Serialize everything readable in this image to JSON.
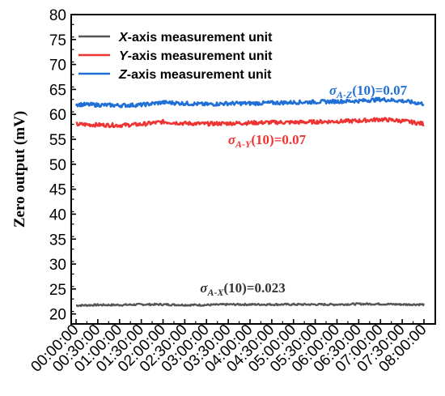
{
  "chart_data": {
    "type": "line",
    "ylabel": "Zero output (mV)",
    "xlabel": "",
    "ylim": [
      18,
      80
    ],
    "y_ticks": [
      20,
      25,
      30,
      35,
      40,
      45,
      50,
      55,
      60,
      65,
      70,
      75,
      80
    ],
    "x_ticks": [
      "00:00:00",
      "00:30:00",
      "01:00:00",
      "01:30:00",
      "02:00:00",
      "02:30:00",
      "03:00:00",
      "03:30:00",
      "04:00:00",
      "04:30:00",
      "05:00:00",
      "05:30:00",
      "06:00:00",
      "06:30:00",
      "07:00:00",
      "07:30:00",
      "08:00:00"
    ],
    "legend_position": "top-left",
    "series": [
      {
        "name_parts": [
          {
            "text": "X",
            "italic": true
          },
          {
            "text": "-axis measurement unit",
            "italic": false
          }
        ],
        "name": "X-axis measurement unit",
        "color": "#555555",
        "x": [
          "00:00:00",
          "00:30:00",
          "01:00:00",
          "01:30:00",
          "02:00:00",
          "02:30:00",
          "03:00:00",
          "03:30:00",
          "04:00:00",
          "04:30:00",
          "05:00:00",
          "05:30:00",
          "06:00:00",
          "06:30:00",
          "07:00:00",
          "07:30:00",
          "08:00:00"
        ],
        "values": [
          21.7,
          21.8,
          21.8,
          21.9,
          21.9,
          21.8,
          21.8,
          21.9,
          21.9,
          21.9,
          21.9,
          21.9,
          21.9,
          22.0,
          22.0,
          21.9,
          21.9
        ]
      },
      {
        "name_parts": [
          {
            "text": "Y",
            "italic": true
          },
          {
            "text": "-axis measurement unit",
            "italic": false
          }
        ],
        "name": "Y-axis measurement unit",
        "color": "#ee3333",
        "x": [
          "00:00:00",
          "00:30:00",
          "01:00:00",
          "01:30:00",
          "02:00:00",
          "02:30:00",
          "03:00:00",
          "03:30:00",
          "04:00:00",
          "04:30:00",
          "05:00:00",
          "05:30:00",
          "06:00:00",
          "06:30:00",
          "07:00:00",
          "07:30:00",
          "08:00:00"
        ],
        "values": [
          58.0,
          57.9,
          57.8,
          58.0,
          58.5,
          58.2,
          58.1,
          58.2,
          58.3,
          58.4,
          58.4,
          58.5,
          58.6,
          58.7,
          59.0,
          58.7,
          58.1
        ]
      },
      {
        "name_parts": [
          {
            "text": "Z",
            "italic": true
          },
          {
            "text": "-axis measurement unit",
            "italic": false
          }
        ],
        "name": "Z-axis measurement unit",
        "color": "#1f6fd6",
        "x": [
          "00:00:00",
          "00:30:00",
          "01:00:00",
          "01:30:00",
          "02:00:00",
          "02:30:00",
          "03:00:00",
          "03:30:00",
          "04:00:00",
          "04:30:00",
          "05:00:00",
          "05:30:00",
          "06:00:00",
          "06:30:00",
          "07:00:00",
          "07:30:00",
          "08:00:00"
        ],
        "values": [
          62.0,
          61.9,
          61.8,
          61.9,
          62.4,
          62.2,
          62.0,
          62.2,
          62.2,
          62.3,
          62.4,
          62.5,
          62.6,
          62.7,
          63.0,
          62.7,
          62.1
        ]
      }
    ],
    "annotations": [
      {
        "id": "anno-z",
        "sigma": "σ",
        "sub": "A-Z",
        "rest": "(10)=0.07",
        "color": "#1f6fd6",
        "near_series": "Z-axis measurement unit"
      },
      {
        "id": "anno-y",
        "sigma": "σ",
        "sub": "A-Y",
        "rest": "(10)=0.07",
        "color": "#ee3333",
        "near_series": "Y-axis measurement unit"
      },
      {
        "id": "anno-x",
        "sigma": "σ",
        "sub": "A-X",
        "rest": "(10)=0.023",
        "color": "#333333",
        "near_series": "X-axis measurement unit"
      }
    ]
  }
}
